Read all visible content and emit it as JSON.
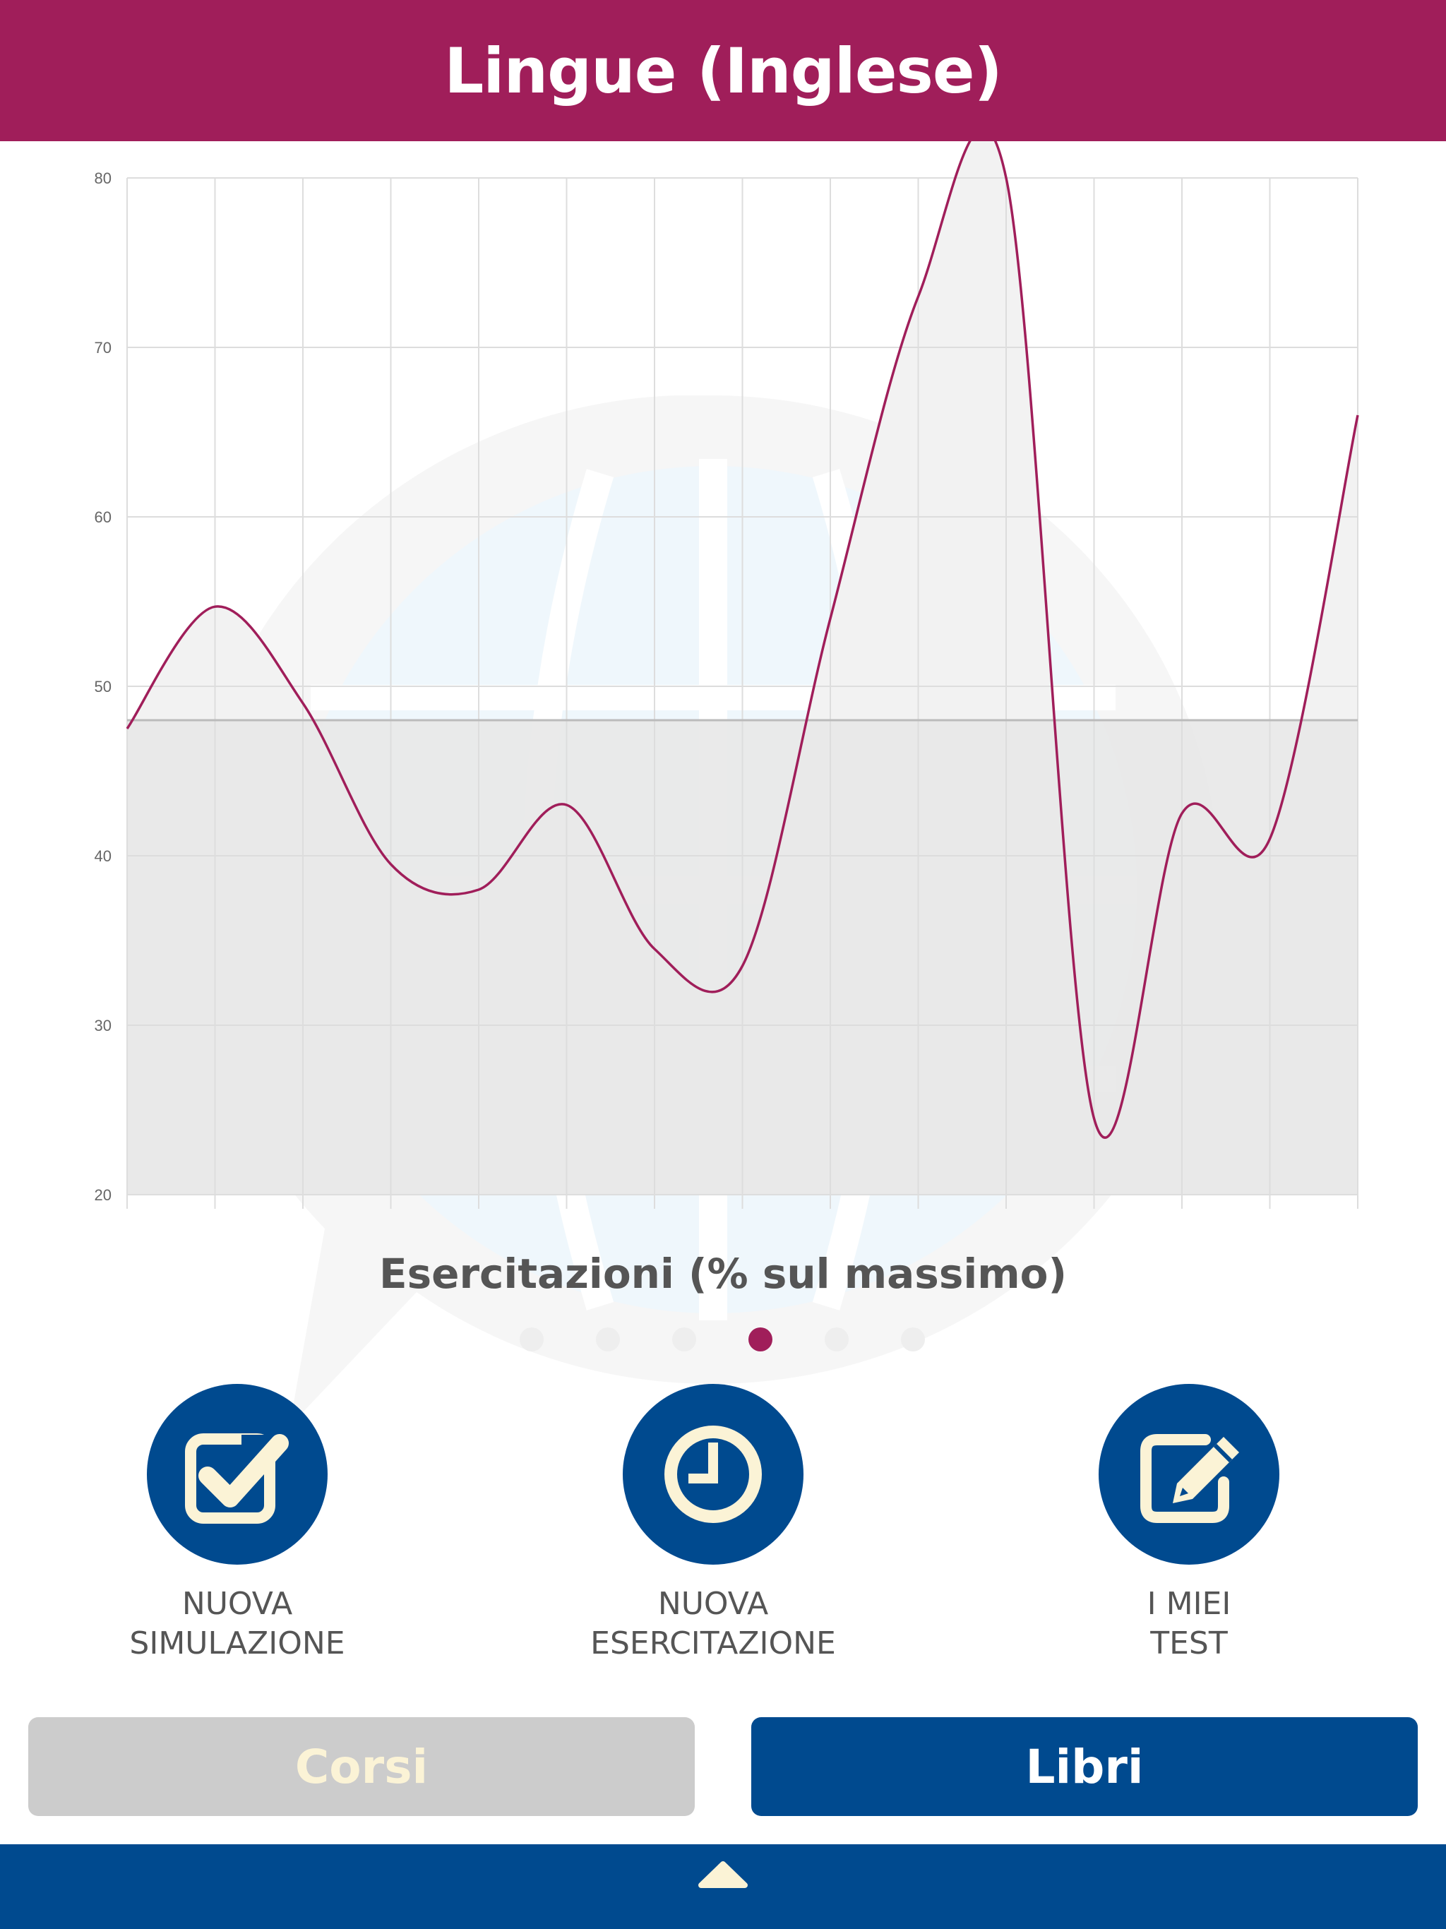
{
  "header": {
    "title": "Lingue (Inglese)"
  },
  "chart_data": {
    "type": "line",
    "title": "Esercitazioni (% sul massimo)",
    "ylim": [
      20,
      80
    ],
    "yticks": [
      20,
      30,
      40,
      50,
      60,
      70,
      80
    ],
    "grid": true,
    "reference_line": 48,
    "series": [
      {
        "values": [
          47.5,
          54.7,
          49,
          39.5,
          38,
          43,
          34.5,
          33.5,
          54,
          73,
          80,
          24.5,
          42.5,
          41,
          66
        ]
      }
    ]
  },
  "pager": {
    "count": 6,
    "active_index": 3
  },
  "actions": [
    {
      "line1": "NUOVA",
      "line2": "SIMULAZIONE",
      "icon": "checkbox-icon"
    },
    {
      "line1": "NUOVA",
      "line2": "ESERCITAZIONE",
      "icon": "clock-icon"
    },
    {
      "line1": "I MIEI",
      "line2": "TEST",
      "icon": "edit-icon"
    }
  ],
  "buttons": {
    "corsi": "Corsi",
    "libri": "Libri"
  },
  "footer": {
    "icon": "chevron-up-icon"
  },
  "colors": {
    "header_bg": "#a01e5a",
    "line": "#a01e5a",
    "primary_blue": "#004a8f",
    "disabled_gray": "#cccccc",
    "cream": "#fbf3d6"
  }
}
